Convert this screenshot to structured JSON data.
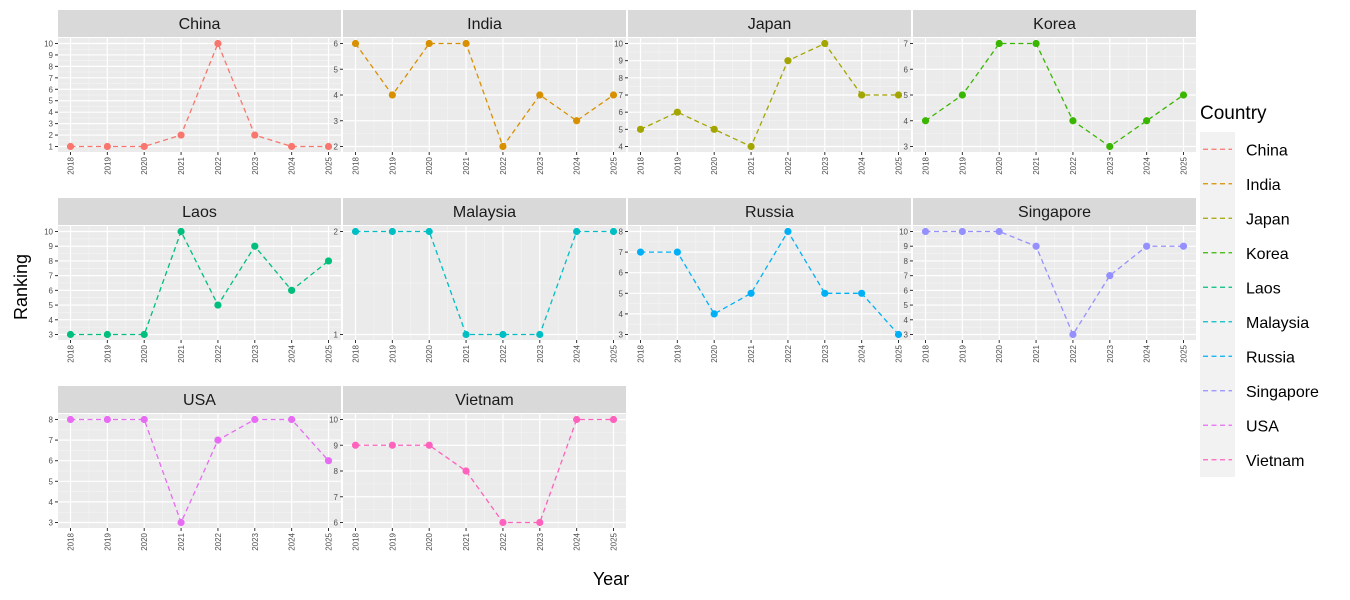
{
  "chart_data": {
    "type": "line",
    "line_style": "dashed",
    "markers": "points",
    "facets": "wrap-4-columns",
    "xlabel": "Year",
    "ylabel": "Ranking",
    "x": [
      "2018",
      "2019",
      "2020",
      "2021",
      "2022",
      "2023",
      "2024",
      "2025"
    ],
    "legend_title": "Country",
    "legend_position": "right",
    "panel_background": "#ebebeb",
    "strip_background": "#d9d9d9",
    "series": [
      {
        "name": "China",
        "color": "#F8766D",
        "values": [
          1,
          1,
          1,
          2,
          10,
          2,
          1,
          1
        ],
        "y_ticks": [
          1,
          2,
          3,
          4,
          5,
          6,
          7,
          8,
          9,
          10
        ]
      },
      {
        "name": "India",
        "color": "#D89000",
        "values": [
          6,
          4,
          6,
          6,
          2,
          4,
          3,
          4
        ],
        "y_ticks": [
          2,
          3,
          4,
          5,
          6
        ]
      },
      {
        "name": "Japan",
        "color": "#A3A500",
        "values": [
          5,
          6,
          5,
          4,
          9,
          10,
          7,
          7
        ],
        "y_ticks": [
          4,
          5,
          6,
          7,
          8,
          9,
          10
        ]
      },
      {
        "name": "Korea",
        "color": "#39B600",
        "values": [
          4,
          5,
          7,
          7,
          4,
          3,
          4,
          5
        ],
        "y_ticks": [
          3,
          4,
          5,
          6,
          7
        ]
      },
      {
        "name": "Laos",
        "color": "#00BF7D",
        "values": [
          3,
          3,
          3,
          10,
          5,
          9,
          6,
          8
        ],
        "y_ticks": [
          3,
          4,
          5,
          6,
          7,
          8,
          9,
          10
        ]
      },
      {
        "name": "Malaysia",
        "color": "#00BFC4",
        "values": [
          2,
          2,
          2,
          1,
          1,
          1,
          2,
          2
        ],
        "y_ticks": [
          1,
          2
        ]
      },
      {
        "name": "Russia",
        "color": "#00B0F6",
        "values": [
          7,
          7,
          4,
          5,
          8,
          5,
          5,
          3
        ],
        "y_ticks": [
          3,
          4,
          5,
          6,
          7,
          8
        ]
      },
      {
        "name": "Singapore",
        "color": "#9590FF",
        "values": [
          10,
          10,
          10,
          9,
          3,
          7,
          9,
          9
        ],
        "y_ticks": [
          3,
          4,
          5,
          6,
          7,
          8,
          9,
          10
        ]
      },
      {
        "name": "USA",
        "color": "#E76BF3",
        "values": [
          8,
          8,
          8,
          3,
          7,
          8,
          8,
          6
        ],
        "y_ticks": [
          3,
          4,
          5,
          6,
          7,
          8
        ]
      },
      {
        "name": "Vietnam",
        "color": "#FF62BC",
        "values": [
          9,
          9,
          9,
          8,
          6,
          6,
          10,
          10
        ],
        "y_ticks": [
          6,
          7,
          8,
          9,
          10
        ]
      }
    ]
  }
}
